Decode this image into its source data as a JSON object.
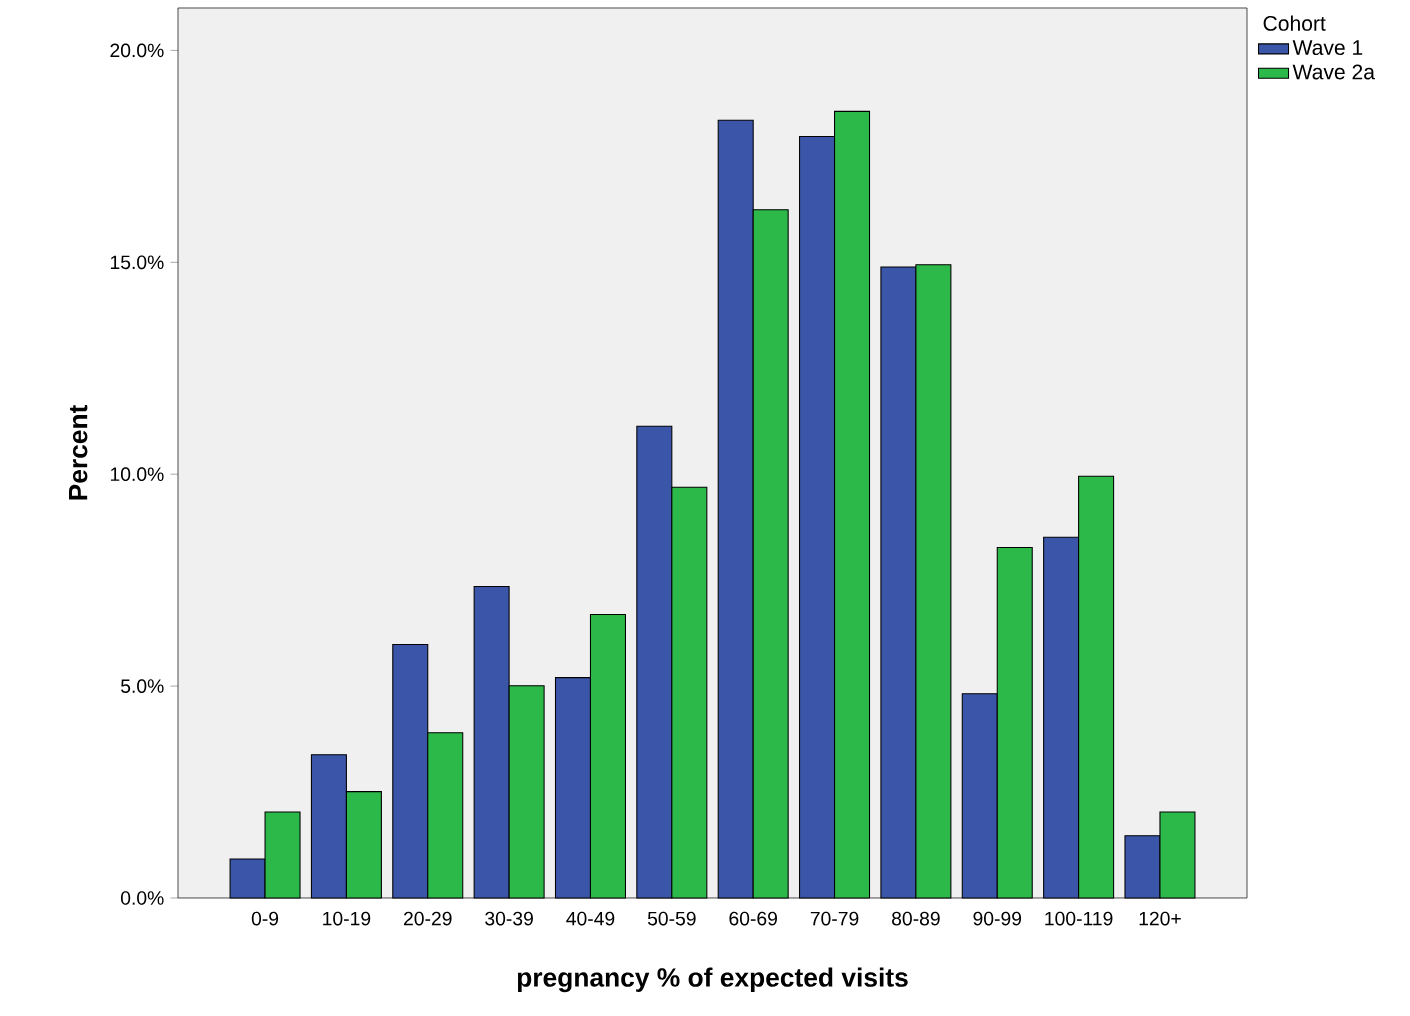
{
  "chart_data": {
    "type": "bar",
    "xlabel": "pregnancy % of expected visits",
    "ylabel": "Percent",
    "legend_title": "Cohort",
    "legend": "right",
    "categories": [
      "0-9",
      "10-19",
      "20-29",
      "30-39",
      "40-49",
      "50-59",
      "60-69",
      "70-79",
      "80-89",
      "90-99",
      "100-119",
      "120+"
    ],
    "series": [
      {
        "name": "Wave 1",
        "color": "#3b55a8",
        "values": [
          0.92,
          3.38,
          5.98,
          7.35,
          5.2,
          11.13,
          18.35,
          17.97,
          14.89,
          4.82,
          8.51,
          1.47
        ]
      },
      {
        "name": "Wave 2a",
        "color": "#2db84a",
        "values": [
          2.03,
          2.51,
          3.9,
          5.01,
          6.69,
          9.69,
          16.24,
          18.56,
          14.94,
          8.27,
          9.95,
          2.03
        ]
      }
    ],
    "ylim": [
      0,
      21
    ],
    "yticks": [
      {
        "value": 0,
        "label": "0.0%"
      },
      {
        "value": 5,
        "label": "5.0%"
      },
      {
        "value": 10,
        "label": "10.0%"
      },
      {
        "value": 15,
        "label": "15.0%"
      },
      {
        "value": 20,
        "label": "20.0%"
      }
    ],
    "grid": false
  }
}
